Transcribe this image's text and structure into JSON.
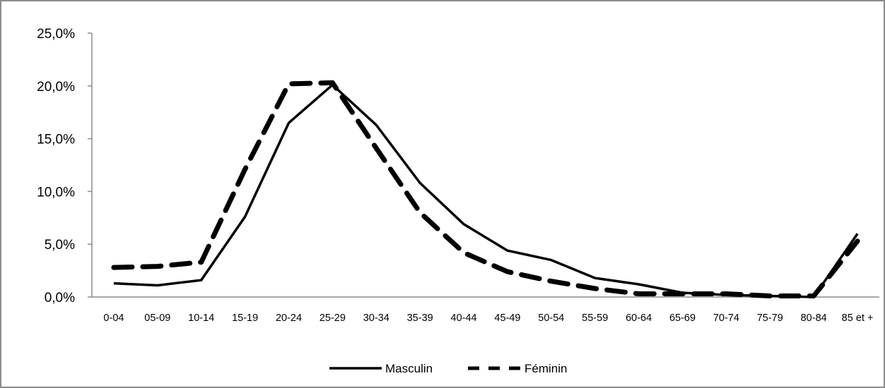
{
  "chart_data": {
    "type": "line",
    "title": "",
    "xlabel": "",
    "ylabel": "",
    "ylim": [
      0,
      25
    ],
    "y_ticks": [
      0,
      5,
      10,
      15,
      20,
      25
    ],
    "y_tick_labels": [
      "0,0%",
      "5,0%",
      "10,0%",
      "15,0%",
      "20,0%",
      "25,0%"
    ],
    "grid": false,
    "legend_position": "bottom",
    "categories": [
      "0-04",
      "05-09",
      "10-14",
      "15-19",
      "20-24",
      "25-29",
      "30-34",
      "35-39",
      "40-44",
      "45-49",
      "50-54",
      "55-59",
      "60-64",
      "65-69",
      "70-74",
      "75-79",
      "80-84",
      "85 et +"
    ],
    "series": [
      {
        "name": "Masculin",
        "line_style": "solid",
        "color": "#000000",
        "values": [
          1.3,
          1.1,
          1.6,
          7.6,
          16.5,
          20.1,
          16.3,
          10.8,
          6.9,
          4.4,
          3.5,
          1.8,
          1.2,
          0.4,
          0.2,
          0.1,
          0.0,
          6.0
        ]
      },
      {
        "name": "Féminin",
        "line_style": "dashed",
        "color": "#000000",
        "values": [
          2.8,
          2.9,
          3.3,
          12.1,
          20.2,
          20.3,
          14.1,
          8.0,
          4.2,
          2.4,
          1.5,
          0.8,
          0.3,
          0.3,
          0.3,
          0.1,
          0.1,
          5.3
        ]
      }
    ]
  }
}
